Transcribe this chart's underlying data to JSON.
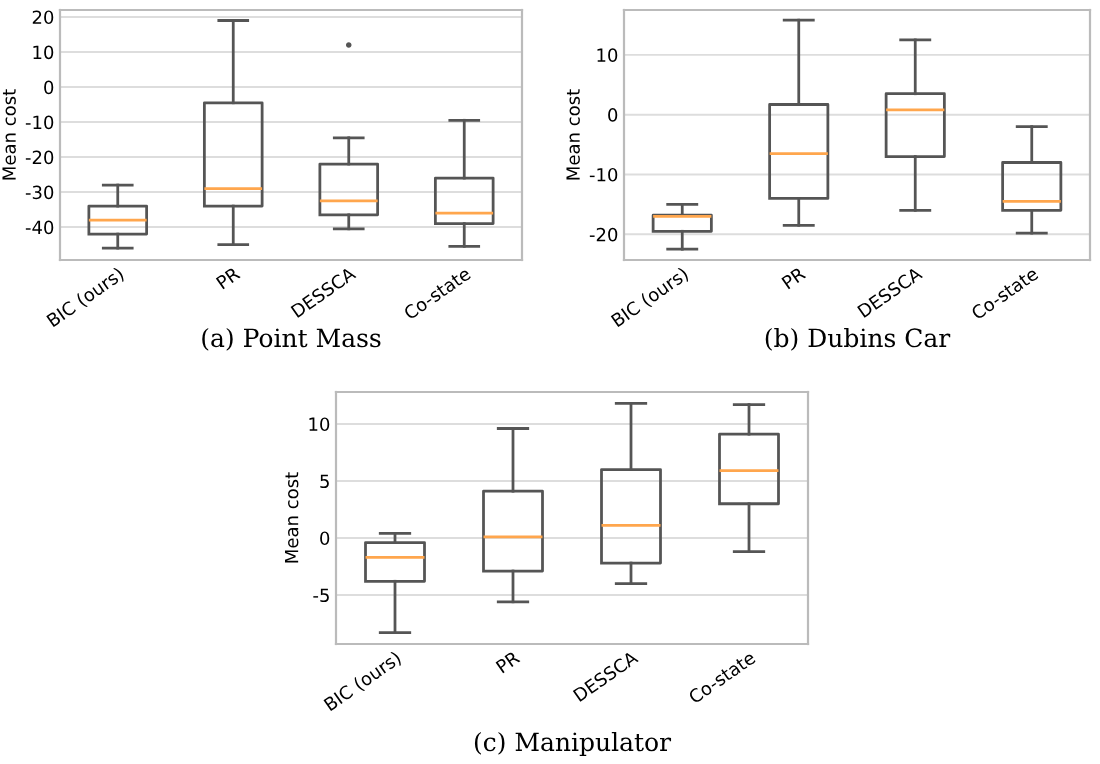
{
  "chart_data": [
    {
      "type": "box",
      "title": "(a) Point Mass",
      "ylabel": "Mean cost",
      "categories": [
        "BIC (ours)",
        "PR",
        "DESSCA",
        "Co-state"
      ],
      "ylim": [
        -49.4,
        22
      ],
      "yticks": [
        -40,
        -30,
        -20,
        -10,
        0,
        10,
        20
      ],
      "grid": "y",
      "boxes": [
        {
          "low": -46,
          "q1": -42,
          "median": -38,
          "q3": -34,
          "high": -28
        },
        {
          "low": -45,
          "q1": -34,
          "median": -29,
          "q3": -4.5,
          "high": 19
        },
        {
          "low": -40.5,
          "q1": -36.5,
          "median": -32.5,
          "q3": -22,
          "high": -14.5,
          "outliers": [
            12
          ]
        },
        {
          "low": -45.5,
          "q1": -39,
          "median": -36,
          "q3": -26,
          "high": -9.5
        }
      ]
    },
    {
      "type": "box",
      "title": "(b) Dubins Car",
      "ylabel": "Mean cost",
      "categories": [
        "BIC (ours)",
        "PR",
        "DESSCA",
        "Co-state"
      ],
      "ylim": [
        -24.3,
        17.5
      ],
      "yticks": [
        -20,
        -10,
        0,
        10
      ],
      "grid": "y",
      "boxes": [
        {
          "low": -22.5,
          "q1": -19.5,
          "median": -17,
          "q3": -16.8,
          "high": -15
        },
        {
          "low": -18.5,
          "q1": -14,
          "median": -6.5,
          "q3": 1.7,
          "high": 15.8
        },
        {
          "low": -16,
          "q1": -7,
          "median": 0.8,
          "q3": 3.5,
          "high": 12.5
        },
        {
          "low": -19.8,
          "q1": -16,
          "median": -14.5,
          "q3": -8,
          "high": -2
        }
      ]
    },
    {
      "type": "box",
      "title": "(c) Manipulator",
      "ylabel": "Mean cost",
      "categories": [
        "BIC (ours)",
        "PR",
        "DESSCA",
        "Co-state"
      ],
      "ylim": [
        -9.3,
        12.8
      ],
      "yticks": [
        -5,
        0,
        5,
        10
      ],
      "grid": "y",
      "boxes": [
        {
          "low": -8.3,
          "q1": -3.8,
          "median": -1.7,
          "q3": -0.4,
          "high": 0.4
        },
        {
          "low": -5.6,
          "q1": -2.9,
          "median": 0.1,
          "q3": 4.1,
          "high": 9.6
        },
        {
          "low": -4,
          "q1": -2.2,
          "median": 1.1,
          "q3": 6,
          "high": 11.8
        },
        {
          "low": -1.2,
          "q1": 3,
          "median": 5.9,
          "q3": 9.1,
          "high": 11.7
        }
      ]
    }
  ]
}
